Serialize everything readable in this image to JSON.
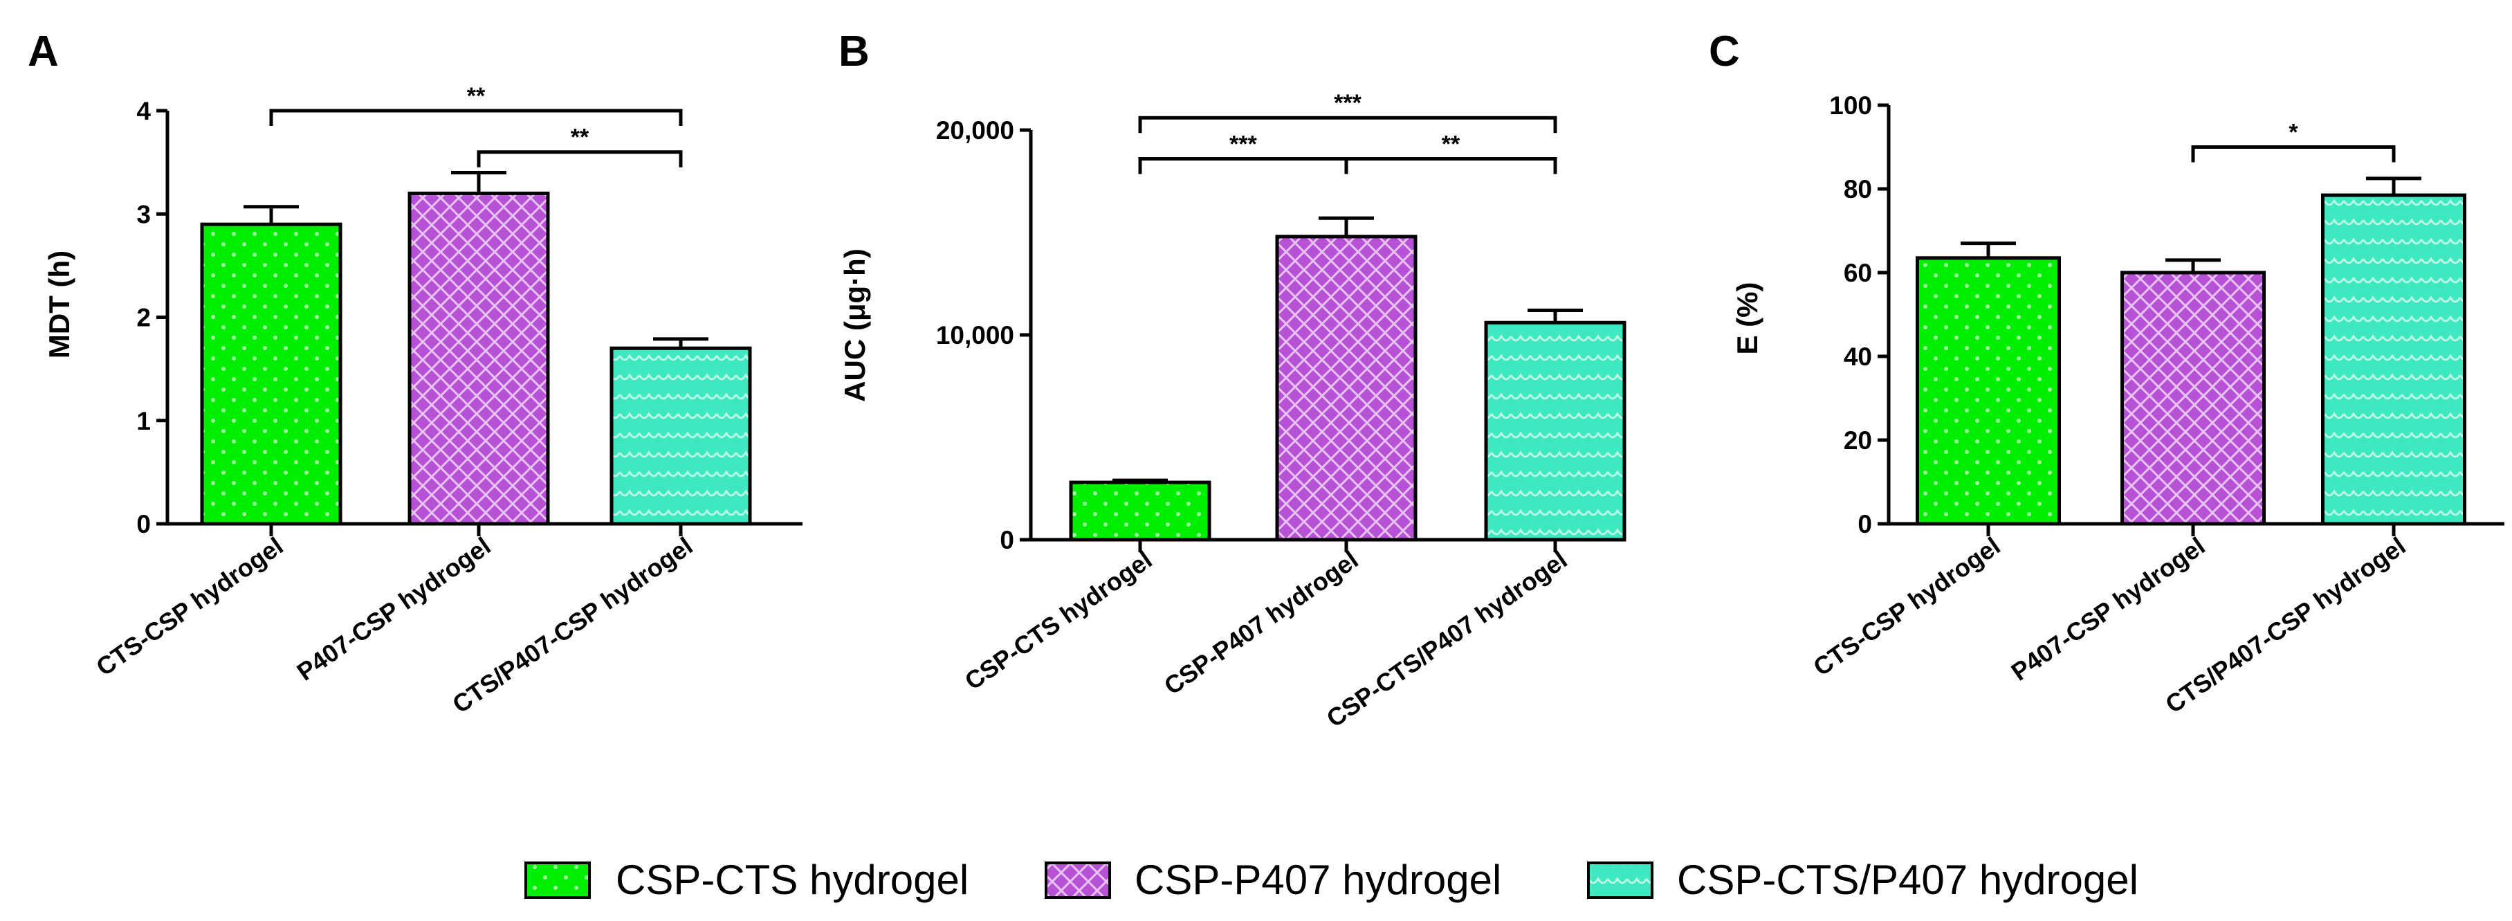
{
  "chart_data": [
    {
      "type": "bar",
      "panel": "A",
      "ylabel": "MDT (h)",
      "ylim": [
        0,
        4
      ],
      "yticks": [
        0,
        1,
        2,
        3,
        4
      ],
      "yticklabels": [
        "0",
        "1",
        "2",
        "3",
        "4"
      ],
      "categories": [
        "CTS-CSP hydrogel",
        "P407-CSP hydrogel",
        "CTS/P407-CSP hydrogel"
      ],
      "values": [
        2.9,
        3.2,
        1.7
      ],
      "errors": [
        0.17,
        0.2,
        0.09
      ],
      "significance": [
        {
          "from": 0,
          "to": 2,
          "label": "**",
          "level": 4.0
        },
        {
          "from": 1,
          "to": 2,
          "label": "**",
          "level": 3.6
        }
      ]
    },
    {
      "type": "bar",
      "panel": "B",
      "ylabel": "AUC (μg·h)",
      "ylim": [
        0,
        20000
      ],
      "yticks": [
        0,
        10000,
        20000
      ],
      "yticklabels": [
        "0",
        "10,000",
        "20,000"
      ],
      "categories": [
        "CSP-CTS hydrogel",
        "CSP-P407 hydrogel",
        "CSP-CTS/P407 hydrogel"
      ],
      "values": [
        2800,
        14800,
        10600
      ],
      "errors": [
        100,
        900,
        600
      ],
      "significance": [
        {
          "from": 0,
          "to": 2,
          "label": "***",
          "level": 20600
        },
        {
          "from": 0,
          "to": 1,
          "label": "***",
          "level": 18600
        },
        {
          "from": 1,
          "to": 2,
          "label": "**",
          "level": 18600
        }
      ]
    },
    {
      "type": "bar",
      "panel": "C",
      "ylabel": "E (%)",
      "ylim": [
        0,
        100
      ],
      "yticks": [
        0,
        20,
        40,
        60,
        80,
        100
      ],
      "yticklabels": [
        "0",
        "20",
        "40",
        "60",
        "80",
        "100"
      ],
      "categories": [
        "CTS-CSP hydrogel",
        "P407-CSP hydrogel",
        "CTS/P407-CSP hydrogel"
      ],
      "values": [
        63.5,
        60,
        78.5
      ],
      "errors": [
        3.5,
        3,
        4
      ],
      "significance": [
        {
          "from": 1,
          "to": 2,
          "label": "*",
          "level": 90
        }
      ]
    }
  ],
  "legend": {
    "items": [
      {
        "label": "CSP-CTS hydrogel",
        "color": "#00ee00",
        "pattern": "dots"
      },
      {
        "label": "CSP-P407 hydrogel",
        "color": "#b752d6",
        "pattern": "checker"
      },
      {
        "label": "CSP-CTS/P407 hydrogel",
        "color": "#3ee8c0",
        "pattern": "scales"
      }
    ]
  },
  "colors": [
    "#00ee00",
    "#b752d6",
    "#3ee8c0"
  ]
}
